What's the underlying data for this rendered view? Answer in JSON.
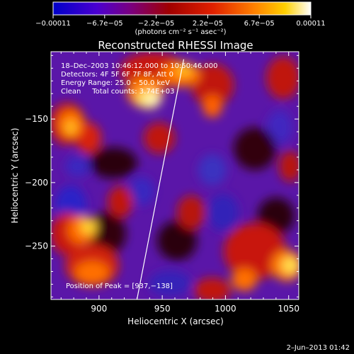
{
  "chart_data": {
    "type": "heatmap",
    "title": "Reconstructed RHESSI Image",
    "xlabel": "Heliocentric X (arcsec)",
    "ylabel": "Heliocentric Y (arcsec)",
    "xlim": [
      862,
      1058
    ],
    "ylim": [
      -292,
      -97
    ],
    "x_ticks": [
      900,
      950,
      1000,
      1050
    ],
    "y_ticks": [
      -150,
      -200,
      -250
    ],
    "x_tick_labels": [
      "900",
      "950",
      "1000",
      "1050"
    ],
    "y_tick_labels": [
      "−150",
      "−200",
      "−250"
    ],
    "colorbar": {
      "range": [
        -0.00011,
        0.00011
      ],
      "tick_labels": [
        "−0.00011",
        "−6.7e−05",
        "−2.2e−05",
        "2.2e−05",
        "6.7e−05",
        "0.00011"
      ],
      "unit_label": "(photons cm⁻² s⁻¹ asec⁻²)"
    },
    "annotations": {
      "time": "18–Dec–2003 10:46:12.000 to 10:50:46.000",
      "detectors": "Detectors: 4F 5F 6F 7F 8F, Att 0",
      "energy": "Energy Range: 25.0 – 50.0 keV",
      "clean": "Clean     Total counts: 3.74E+03",
      "peak": "Position of Peak = [937,−138]"
    },
    "peak": [
      937,
      -138
    ],
    "limb_line": [
      [
        930,
        -292
      ],
      [
        967,
        -103
      ]
    ]
  },
  "footer": {
    "date": "2–Jun–2013 01:42"
  }
}
